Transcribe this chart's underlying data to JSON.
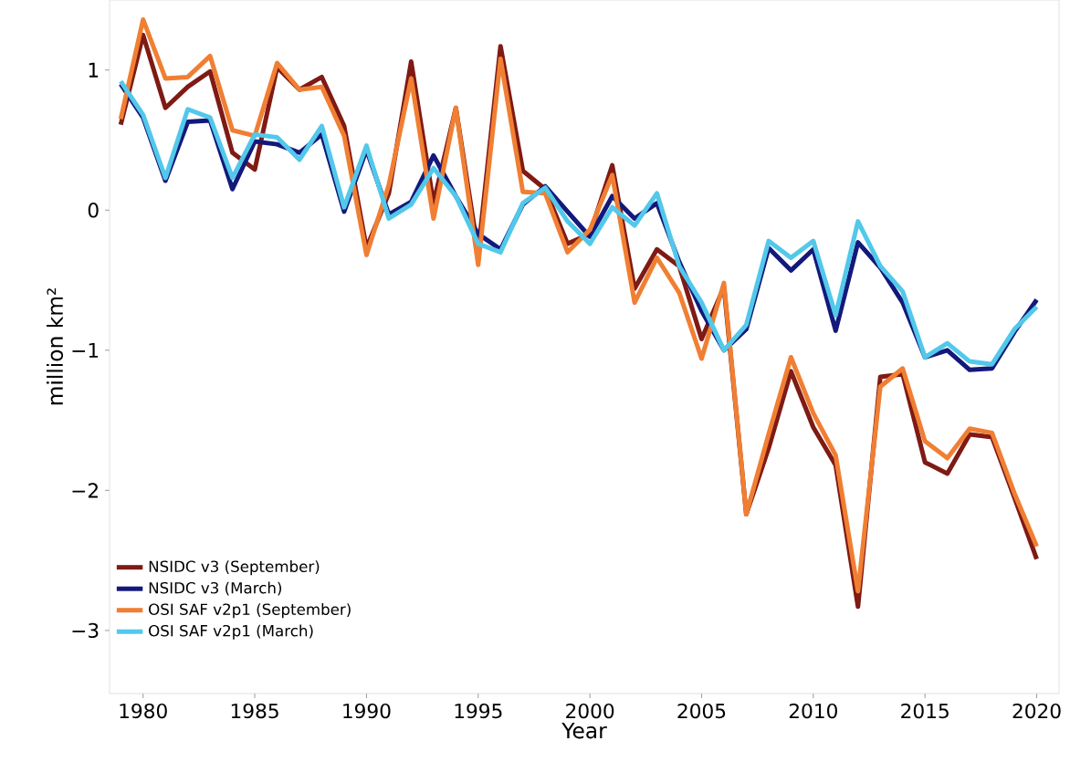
{
  "chart_data": {
    "type": "line",
    "xlabel": "Year",
    "ylabel": "million km²",
    "x": [
      1979,
      1980,
      1981,
      1982,
      1983,
      1984,
      1985,
      1986,
      1987,
      1988,
      1989,
      1990,
      1991,
      1992,
      1993,
      1994,
      1995,
      1996,
      1997,
      1998,
      1999,
      2000,
      2001,
      2002,
      2003,
      2004,
      2005,
      2006,
      2007,
      2008,
      2009,
      2010,
      2011,
      2012,
      2013,
      2014,
      2015,
      2016,
      2017,
      2018,
      2019,
      2020
    ],
    "series": [
      {
        "name": "NSIDC v3 (September)",
        "color": "#7f1a14",
        "values": [
          0.61,
          1.25,
          0.73,
          0.88,
          0.99,
          0.41,
          0.29,
          1.02,
          0.86,
          0.95,
          0.6,
          -0.27,
          0.12,
          1.06,
          0.05,
          0.73,
          -0.3,
          1.17,
          0.28,
          0.15,
          -0.24,
          -0.17,
          0.32,
          -0.56,
          -0.28,
          -0.4,
          -0.92,
          -0.55,
          -2.17,
          -1.7,
          -1.15,
          -1.55,
          -1.82,
          -2.83,
          -1.19,
          -1.17,
          -1.8,
          -1.88,
          -1.6,
          -1.62,
          -2.05,
          -2.49
        ]
      },
      {
        "name": "NSIDC v3 (March)",
        "color": "#13197a",
        "values": [
          0.9,
          0.66,
          0.21,
          0.63,
          0.64,
          0.15,
          0.49,
          0.47,
          0.41,
          0.54,
          -0.01,
          0.43,
          -0.03,
          0.06,
          0.39,
          0.1,
          -0.17,
          -0.28,
          0.04,
          0.17,
          -0.01,
          -0.19,
          0.1,
          -0.06,
          0.05,
          -0.37,
          -0.72,
          -1.0,
          -0.85,
          -0.27,
          -0.43,
          -0.28,
          -0.86,
          -0.23,
          -0.41,
          -0.66,
          -1.05,
          -1.0,
          -1.14,
          -1.13,
          -0.87,
          -0.64
        ]
      },
      {
        "name": "OSI SAF v2p1 (September)",
        "color": "#f07f33",
        "values": [
          0.65,
          1.36,
          0.94,
          0.95,
          1.1,
          0.57,
          0.53,
          1.05,
          0.86,
          0.88,
          0.53,
          -0.32,
          0.18,
          0.94,
          -0.06,
          0.73,
          -0.39,
          1.08,
          0.13,
          0.12,
          -0.3,
          -0.14,
          0.25,
          -0.66,
          -0.34,
          -0.59,
          -1.06,
          -0.52,
          -2.17,
          -1.6,
          -1.05,
          -1.45,
          -1.75,
          -2.72,
          -1.26,
          -1.13,
          -1.65,
          -1.77,
          -1.56,
          -1.59,
          -2.02,
          -2.4
        ]
      },
      {
        "name": "OSI SAF v2p1 (March)",
        "color": "#52c8ea",
        "values": [
          0.92,
          0.68,
          0.23,
          0.72,
          0.66,
          0.23,
          0.54,
          0.52,
          0.36,
          0.6,
          0.02,
          0.46,
          -0.06,
          0.04,
          0.3,
          0.1,
          -0.24,
          -0.3,
          0.05,
          0.16,
          -0.08,
          -0.24,
          0.02,
          -0.11,
          0.12,
          -0.4,
          -0.66,
          -1.0,
          -0.82,
          -0.22,
          -0.34,
          -0.22,
          -0.75,
          -0.08,
          -0.4,
          -0.58,
          -1.05,
          -0.95,
          -1.08,
          -1.1,
          -0.85,
          -0.69
        ]
      }
    ],
    "xticks": [
      1980,
      1985,
      1990,
      1995,
      2000,
      2005,
      2010,
      2015,
      2020
    ],
    "yticks": [
      {
        "value": -3,
        "label": "−3"
      },
      {
        "value": -2,
        "label": "−2"
      },
      {
        "value": -1,
        "label": "−1"
      },
      0,
      1
    ],
    "xlim": [
      1978.5,
      2021
    ],
    "ylim": [
      -3.45,
      1.5
    ],
    "grid": false,
    "legend": "bottom left",
    "line_style": "solid",
    "marker": "none"
  }
}
